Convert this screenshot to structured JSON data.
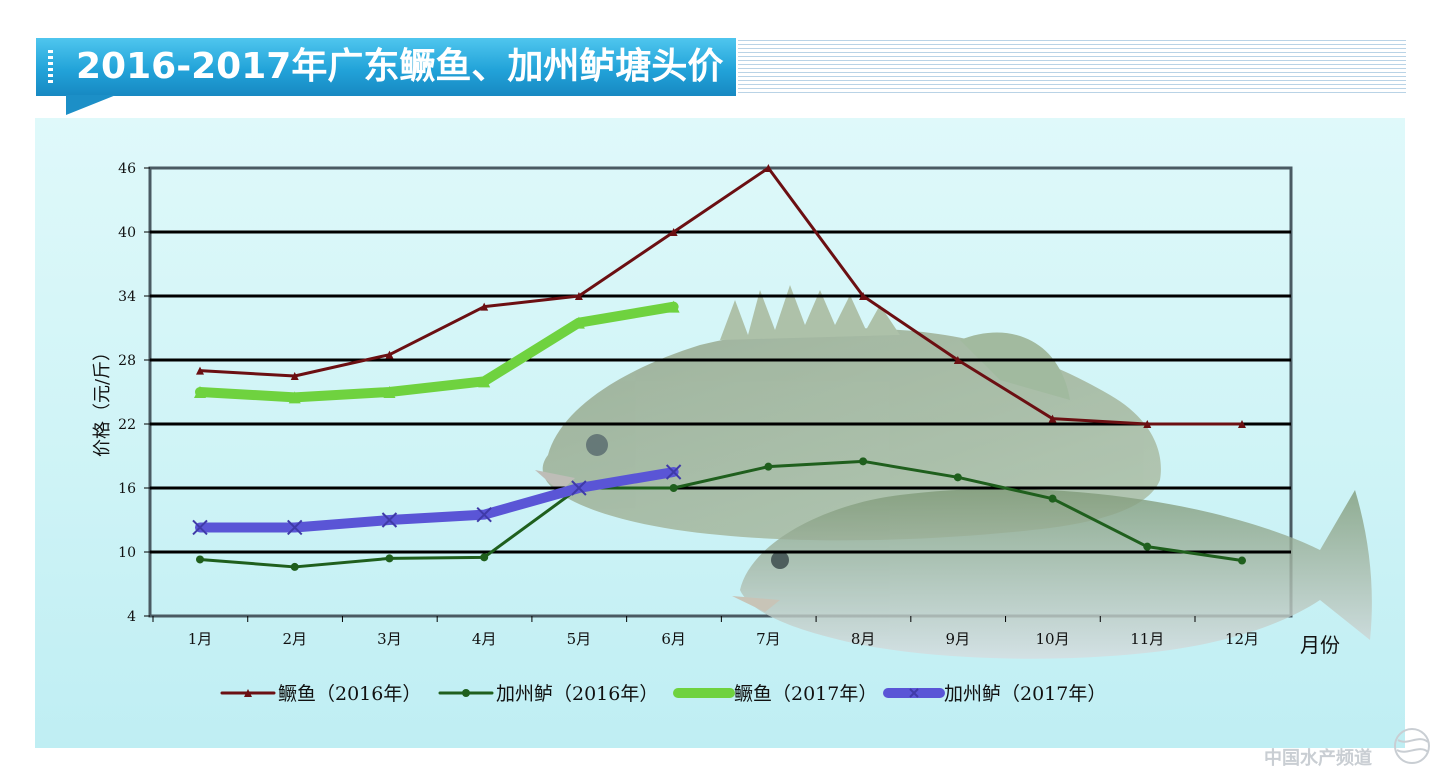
{
  "title": "2016-2017年广东鳜鱼、加州鲈塘头价",
  "watermark": "中国水产频道",
  "colors": {
    "mandarin_2016": "#6b0f12",
    "bass_2016": "#1f5f1d",
    "mandarin_2017": "#6fd23f",
    "bass_2017": "#5a55d6",
    "title_bar": "#22a3d9",
    "panel_bg": "#d3f5f7"
  },
  "chart_data": {
    "type": "line",
    "title": "",
    "xlabel": "月份",
    "ylabel": "价格（元/斤）",
    "categories": [
      "1月",
      "2月",
      "3月",
      "4月",
      "5月",
      "6月",
      "7月",
      "8月",
      "9月",
      "10月",
      "11月",
      "12月"
    ],
    "ylim": [
      4,
      46
    ],
    "yticks": [
      4,
      10,
      16,
      22,
      28,
      34,
      40,
      46
    ],
    "grid": true,
    "legend_position": "bottom",
    "series": [
      {
        "name": "鳜鱼（2016年）",
        "values": [
          27,
          26.5,
          28.5,
          33,
          34,
          40,
          46,
          34,
          28,
          22.5,
          22,
          22
        ]
      },
      {
        "name": "加州鲈（2016年）",
        "values": [
          9.3,
          8.6,
          9.4,
          9.5,
          16,
          16,
          18,
          18.5,
          17,
          15,
          10.5,
          9.2
        ]
      },
      {
        "name": "鳜鱼（2017年）",
        "values": [
          25,
          24.5,
          25,
          26,
          31.5,
          33,
          null,
          null,
          null,
          null,
          null,
          null
        ]
      },
      {
        "name": "加州鲈（2017年）",
        "values": [
          12.3,
          12.3,
          13,
          13.5,
          16,
          17.5,
          null,
          null,
          null,
          null,
          null,
          null
        ]
      }
    ]
  }
}
